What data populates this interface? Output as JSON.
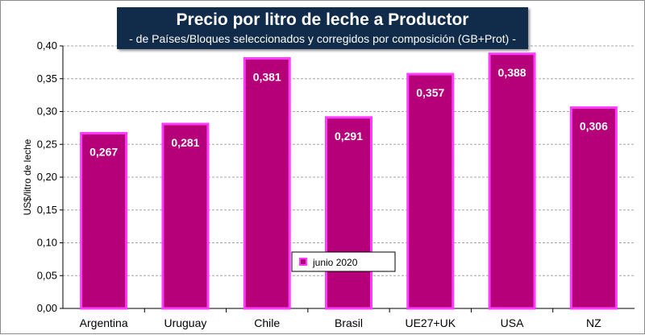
{
  "colors": {
    "bar_fill": "#b5007a",
    "bar_stroke": "#ff3bff",
    "title_bg": "#112b4a",
    "grid": "#a6a6a6"
  },
  "chart_data": {
    "type": "bar",
    "title": "Precio por litro de leche a Productor",
    "subtitle": "-  de Países/Bloques seleccionados y corregidos por composición (GB+Prot) -",
    "xlabel": "",
    "ylabel": "US$/litro de leche",
    "ylim": [
      0,
      0.4
    ],
    "yticks": [
      "0,00",
      "0,05",
      "0,10",
      "0,15",
      "0,20",
      "0,25",
      "0,30",
      "0,35",
      "0,40"
    ],
    "grid": true,
    "legend_position": "center-bottom",
    "categories": [
      "Argentina",
      "Uruguay",
      "Chile",
      "Brasil",
      "UE27+UK",
      "USA",
      "NZ"
    ],
    "series": [
      {
        "name": "junio 2020",
        "values": [
          0.267,
          0.281,
          0.381,
          0.291,
          0.357,
          0.388,
          0.306
        ],
        "labels": [
          "0,267",
          "0,281",
          "0,381",
          "0,291",
          "0,357",
          "0,388",
          "0,306"
        ]
      }
    ]
  }
}
